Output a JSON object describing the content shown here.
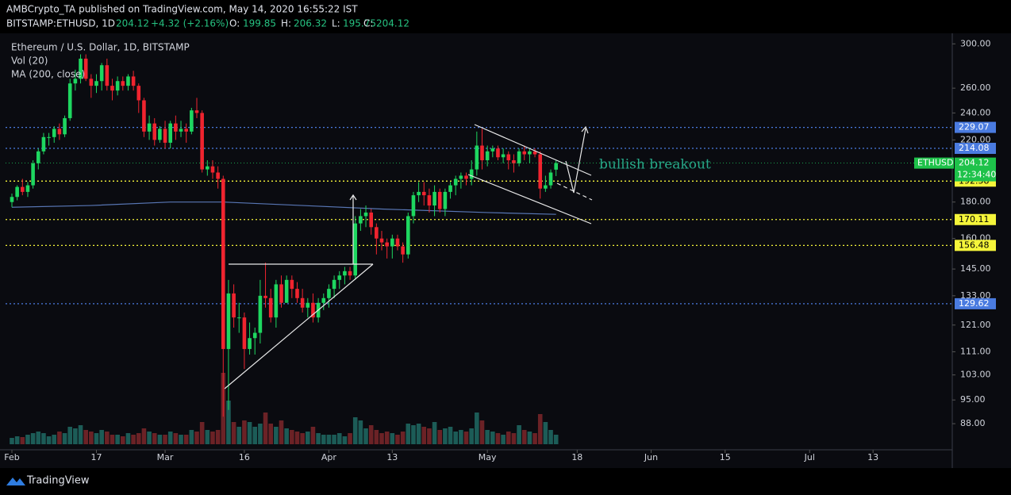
{
  "header": {
    "published": "AMBCrypto_TA published on TradingView.com, May 14, 2020 16:55:22 IST",
    "symbol": "BITSTAMP:ETHUSD, 1D",
    "change": "+4.32 (+2.16%)",
    "ohlc_labels": [
      "O:",
      "H:",
      "L:",
      "C:"
    ]
  },
  "footer": "TradingView",
  "chart_data": {
    "type": "candlestick",
    "title": "Ethereum / U.S. Dollar, 1D, BITSTAMP",
    "indicators": [
      "Vol (20)",
      "MA (200, close)"
    ],
    "annotation": "bullish breakout",
    "symbol_label": "ETHUSD",
    "countdown": "12:34:40",
    "log_scale": true,
    "up_color": "#1ed760",
    "down_color": "#f0242f",
    "vol_up_color": "#1c5c57",
    "vol_down_color": "#6b2226",
    "ma_color": "#5876b4",
    "xlim": [
      -1.2,
      178
    ],
    "xticks": [
      {
        "value": 0,
        "label": "Feb"
      },
      {
        "value": 16,
        "label": "17"
      },
      {
        "value": 29,
        "label": "Mar"
      },
      {
        "value": 44,
        "label": "16"
      },
      {
        "value": 60,
        "label": "Apr"
      },
      {
        "value": 72,
        "label": "13"
      },
      {
        "value": 90,
        "label": "May"
      },
      {
        "value": 107,
        "label": "18"
      },
      {
        "value": 121,
        "label": "Jun"
      },
      {
        "value": 135,
        "label": "15"
      },
      {
        "value": 151,
        "label": "Jul"
      },
      {
        "value": 163,
        "label": "13"
      }
    ],
    "ylim": [
      81.3,
      308
    ],
    "yticks": [
      {
        "value": 300,
        "label": "300.00"
      },
      {
        "value": 260,
        "label": "260.00"
      },
      {
        "value": 240,
        "label": "240.00"
      },
      {
        "value": 220,
        "label": "220.00"
      },
      {
        "value": 180,
        "label": "180.00"
      },
      {
        "value": 160,
        "label": "160.00"
      },
      {
        "value": 145,
        "label": "145.00"
      },
      {
        "value": 133,
        "label": "133.00"
      },
      {
        "value": 121,
        "label": "121.00"
      },
      {
        "value": 111,
        "label": "111.00"
      },
      {
        "value": 103,
        "label": "103.00"
      },
      {
        "value": 95,
        "label": "95.00"
      },
      {
        "value": 88,
        "label": "88.00"
      }
    ],
    "levels": [
      {
        "value": 229.07,
        "color": "#4a7be0"
      },
      {
        "value": 214.08,
        "color": "#4a7be0"
      },
      {
        "value": 192.58,
        "color": "#f5f53a"
      },
      {
        "value": 170.11,
        "color": "#f5f53a"
      },
      {
        "value": 156.48,
        "color": "#f5f53a"
      },
      {
        "value": 129.62,
        "color": "#4a7be0"
      }
    ],
    "candles": [
      [
        180,
        185,
        177,
        183
      ],
      [
        183,
        190,
        181,
        189
      ],
      [
        189,
        194,
        184,
        186
      ],
      [
        186,
        192,
        183,
        190
      ],
      [
        190,
        206,
        188,
        204
      ],
      [
        204,
        214,
        200,
        212
      ],
      [
        212,
        225,
        210,
        222
      ],
      [
        222,
        225,
        216,
        222
      ],
      [
        222,
        230,
        218,
        228
      ],
      [
        228,
        232,
        220,
        224
      ],
      [
        224,
        238,
        222,
        236
      ],
      [
        236,
        268,
        234,
        264
      ],
      [
        264,
        276,
        258,
        268
      ],
      [
        268,
        290,
        264,
        286
      ],
      [
        286,
        290,
        266,
        268
      ],
      [
        268,
        272,
        252,
        262
      ],
      [
        262,
        272,
        256,
        266
      ],
      [
        266,
        282,
        258,
        280
      ],
      [
        280,
        286,
        258,
        262
      ],
      [
        262,
        268,
        250,
        258
      ],
      [
        258,
        270,
        254,
        266
      ],
      [
        266,
        270,
        258,
        262
      ],
      [
        262,
        272,
        258,
        270
      ],
      [
        270,
        275,
        258,
        262
      ],
      [
        262,
        264,
        240,
        250
      ],
      [
        250,
        252,
        222,
        226
      ],
      [
        226,
        238,
        220,
        232
      ],
      [
        232,
        236,
        216,
        220
      ],
      [
        220,
        230,
        218,
        228
      ],
      [
        228,
        234,
        214,
        218
      ],
      [
        218,
        234,
        214,
        232
      ],
      [
        232,
        238,
        220,
        226
      ],
      [
        226,
        234,
        222,
        228
      ],
      [
        228,
        232,
        218,
        226
      ],
      [
        226,
        244,
        224,
        242
      ],
      [
        242,
        252,
        236,
        240
      ],
      [
        240,
        242,
        198,
        200
      ],
      [
        200,
        206,
        196,
        202
      ],
      [
        202,
        206,
        194,
        198
      ],
      [
        198,
        202,
        188,
        194
      ],
      [
        194,
        196,
        90,
        112
      ],
      [
        112,
        140,
        92,
        134
      ],
      [
        134,
        138,
        120,
        124
      ],
      [
        124,
        130,
        118,
        124
      ],
      [
        124,
        126,
        105,
        112
      ],
      [
        112,
        122,
        110,
        116
      ],
      [
        116,
        120,
        110,
        118
      ],
      [
        118,
        140,
        114,
        133
      ],
      [
        133,
        148,
        128,
        132
      ],
      [
        132,
        136,
        122,
        124
      ],
      [
        124,
        140,
        120,
        138
      ],
      [
        138,
        142,
        128,
        130
      ],
      [
        130,
        142,
        130,
        140
      ],
      [
        140,
        142,
        132,
        136
      ],
      [
        136,
        139,
        130,
        132
      ],
      [
        132,
        136,
        126,
        128
      ],
      [
        128,
        132,
        124,
        130
      ],
      [
        130,
        134,
        122,
        124
      ],
      [
        124,
        132,
        122,
        130
      ],
      [
        130,
        134,
        127,
        132
      ],
      [
        132,
        138,
        128,
        136
      ],
      [
        136,
        142,
        132,
        140
      ],
      [
        140,
        144,
        136,
        142
      ],
      [
        142,
        146,
        138,
        144
      ],
      [
        144,
        146,
        140,
        142
      ],
      [
        142,
        172,
        140,
        168
      ],
      [
        168,
        176,
        164,
        172
      ],
      [
        172,
        178,
        166,
        174
      ],
      [
        174,
        176,
        162,
        166
      ],
      [
        166,
        168,
        152,
        160
      ],
      [
        160,
        164,
        154,
        158
      ],
      [
        158,
        160,
        150,
        156
      ],
      [
        156,
        162,
        150,
        160
      ],
      [
        160,
        162,
        154,
        156
      ],
      [
        156,
        158,
        148,
        152
      ],
      [
        152,
        174,
        150,
        172
      ],
      [
        172,
        186,
        168,
        184
      ],
      [
        184,
        192,
        180,
        186
      ],
      [
        186,
        192,
        178,
        184
      ],
      [
        184,
        188,
        174,
        178
      ],
      [
        178,
        190,
        172,
        186
      ],
      [
        186,
        188,
        174,
        176
      ],
      [
        176,
        188,
        172,
        186
      ],
      [
        186,
        192,
        182,
        190
      ],
      [
        190,
        196,
        184,
        194
      ],
      [
        194,
        198,
        188,
        196
      ],
      [
        196,
        198,
        190,
        194
      ],
      [
        194,
        206,
        190,
        200
      ],
      [
        200,
        226,
        196,
        216
      ],
      [
        216,
        228,
        200,
        206
      ],
      [
        206,
        216,
        202,
        212
      ],
      [
        212,
        216,
        208,
        214
      ],
      [
        214,
        216,
        206,
        208
      ],
      [
        208,
        214,
        204,
        210
      ],
      [
        210,
        212,
        200,
        206
      ],
      [
        206,
        210,
        198,
        204
      ],
      [
        204,
        214,
        202,
        212
      ],
      [
        212,
        216,
        206,
        210
      ],
      [
        210,
        214,
        204,
        212
      ],
      [
        212,
        214,
        208,
        210
      ],
      [
        210,
        212,
        182,
        188
      ],
      [
        188,
        196,
        186,
        190
      ],
      [
        190,
        200,
        188,
        198
      ],
      [
        199.85,
        206.32,
        195.75,
        204.12
      ]
    ],
    "volume": [
      8,
      10,
      9,
      12,
      14,
      16,
      14,
      10,
      12,
      16,
      14,
      22,
      20,
      24,
      18,
      16,
      14,
      18,
      16,
      12,
      12,
      10,
      14,
      12,
      14,
      20,
      16,
      14,
      12,
      12,
      16,
      14,
      12,
      12,
      18,
      16,
      28,
      18,
      16,
      18,
      90,
      55,
      28,
      22,
      30,
      28,
      22,
      26,
      40,
      26,
      22,
      30,
      20,
      18,
      16,
      14,
      16,
      22,
      14,
      12,
      12,
      12,
      14,
      10,
      14,
      34,
      30,
      20,
      24,
      18,
      14,
      16,
      14,
      12,
      16,
      26,
      24,
      26,
      22,
      20,
      28,
      18,
      20,
      22,
      16,
      18,
      16,
      20,
      40,
      30,
      18,
      16,
      14,
      12,
      16,
      14,
      24,
      18,
      16,
      14,
      38,
      28,
      18,
      12
    ],
    "volume_lim": [
      0,
      100
    ],
    "ma": {
      "x": [
        0,
        15,
        30,
        40,
        55,
        70,
        90,
        103
      ],
      "values": [
        177,
        178,
        180,
        180,
        178,
        176,
        174,
        173
      ]
    }
  }
}
